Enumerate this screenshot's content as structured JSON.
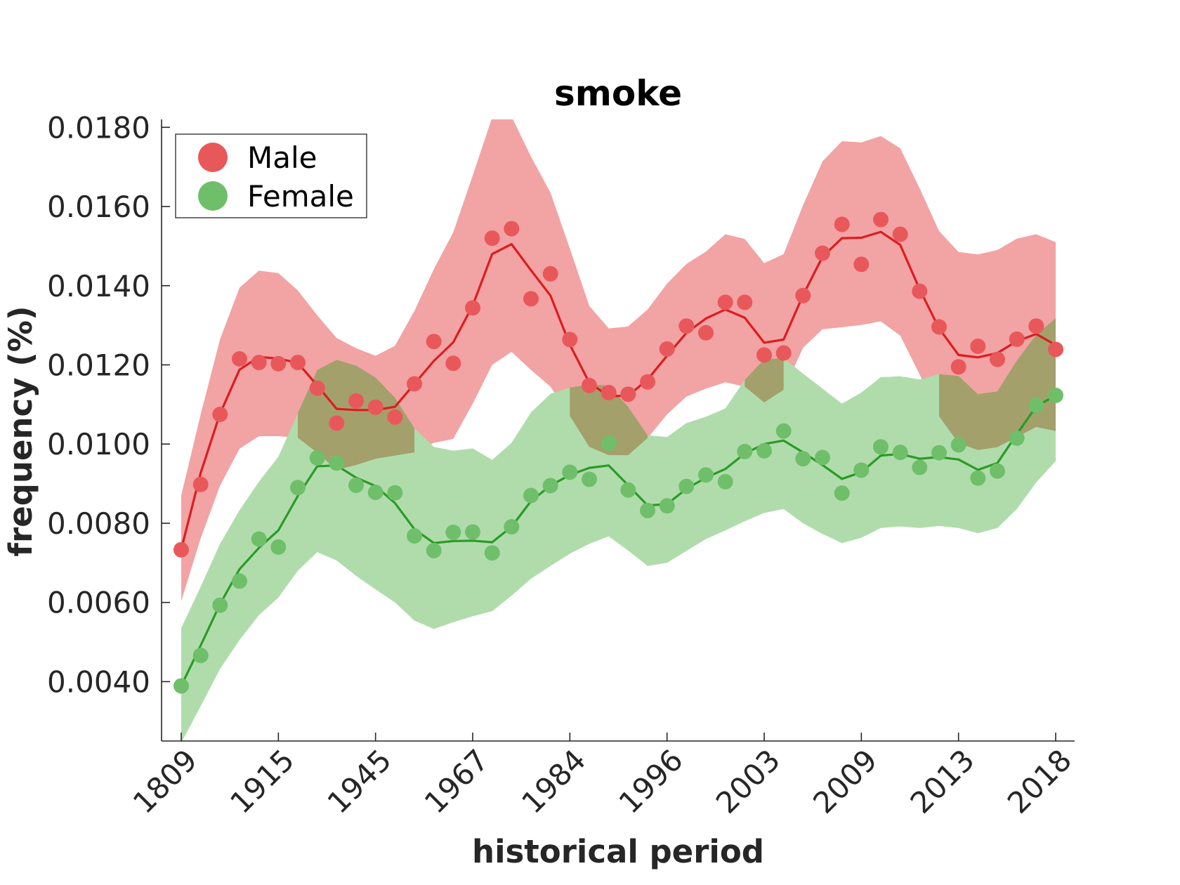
{
  "chart_data": {
    "type": "line",
    "title": "smoke",
    "xlabel": "historical period",
    "ylabel": "frequency (%)",
    "ylim": [
      0.0025,
      0.0182
    ],
    "yticks": [
      "0.0040",
      "0.0060",
      "0.0080",
      "0.0100",
      "0.0120",
      "0.0140",
      "0.0160",
      "0.0180"
    ],
    "ytick_values": [
      0.004,
      0.006,
      0.008,
      0.01,
      0.012,
      0.014,
      0.016,
      0.018
    ],
    "xtick_labels": [
      "1809",
      "1915",
      "1945",
      "1967",
      "1984",
      "1996",
      "2003",
      "2009",
      "2013",
      "2018"
    ],
    "xtick_indices": [
      0,
      5,
      10,
      15,
      20,
      25,
      30,
      35,
      40,
      45
    ],
    "n_points": 46,
    "grid": false,
    "legend_position": "top-left",
    "colors": {
      "Male": {
        "point": "#e8585b",
        "line": "#dd1c1f",
        "band": "#f2a2a3"
      },
      "Female": {
        "point": "#6fbf6a",
        "line": "#2a9b26",
        "band": "#afdcab"
      },
      "overlap": "#a3a06c"
    },
    "series": [
      {
        "name": "Male",
        "points": [
          0.00733,
          0.00898,
          0.01075,
          0.01215,
          0.01206,
          0.01203,
          0.01206,
          0.01141,
          0.01053,
          0.01109,
          0.01093,
          0.01068,
          0.01152,
          0.01259,
          0.01204,
          0.01344,
          0.0152,
          0.01544,
          0.01367,
          0.0143,
          0.01264,
          0.01148,
          0.0113,
          0.01126,
          0.01157,
          0.0124,
          0.01298,
          0.01281,
          0.01358,
          0.01358,
          0.01225,
          0.0123,
          0.01375,
          0.01482,
          0.01555,
          0.01454,
          0.01567,
          0.0153,
          0.01386,
          0.01296,
          0.01195,
          0.01247,
          0.01214,
          0.01265,
          0.01298,
          0.01239
        ],
        "line": [
          0.00734,
          0.00927,
          0.01077,
          0.01188,
          0.0122,
          0.01216,
          0.01205,
          0.01148,
          0.01089,
          0.01086,
          0.01086,
          0.01094,
          0.01152,
          0.0121,
          0.01257,
          0.0135,
          0.0148,
          0.01505,
          0.01439,
          0.01375,
          0.01251,
          0.01155,
          0.01121,
          0.01122,
          0.01163,
          0.01223,
          0.01281,
          0.01317,
          0.0134,
          0.01319,
          0.01256,
          0.01264,
          0.01376,
          0.01473,
          0.0152,
          0.01521,
          0.01536,
          0.01503,
          0.01391,
          0.01292,
          0.01225,
          0.01219,
          0.0123,
          0.0126,
          0.01278,
          0.0125
        ],
        "band_upper": [
          0.0087,
          0.01075,
          0.01265,
          0.01395,
          0.01438,
          0.01432,
          0.01388,
          0.01325,
          0.01268,
          0.01242,
          0.01223,
          0.01248,
          0.01336,
          0.01442,
          0.01535,
          0.01678,
          0.01825,
          0.01827,
          0.01726,
          0.01635,
          0.01494,
          0.01349,
          0.01292,
          0.01297,
          0.0134,
          0.01405,
          0.01455,
          0.01486,
          0.0153,
          0.01518,
          0.01457,
          0.0148,
          0.01603,
          0.01714,
          0.01765,
          0.01762,
          0.01778,
          0.01747,
          0.01646,
          0.01538,
          0.01485,
          0.01479,
          0.0149,
          0.01519,
          0.0153,
          0.0151
        ],
        "band_lower": [
          0.00603,
          0.00762,
          0.00895,
          0.00988,
          0.0102,
          0.0102,
          0.01016,
          0.00978,
          0.00935,
          0.00947,
          0.00963,
          0.00971,
          0.00979,
          0.01003,
          0.01013,
          0.01102,
          0.012,
          0.01233,
          0.01187,
          0.01145,
          0.01071,
          0.00993,
          0.00972,
          0.00972,
          0.01015,
          0.01075,
          0.0112,
          0.0114,
          0.01156,
          0.01145,
          0.01105,
          0.01137,
          0.01243,
          0.0129,
          0.01295,
          0.01301,
          0.0131,
          0.01274,
          0.01176,
          0.0107,
          0.01002,
          0.00985,
          0.00992,
          0.01018,
          0.01043,
          0.01033
        ]
      },
      {
        "name": "Female",
        "points": [
          0.00389,
          0.00466,
          0.00593,
          0.00654,
          0.0076,
          0.0074,
          0.0089,
          0.00965,
          0.00952,
          0.00896,
          0.00878,
          0.00877,
          0.00768,
          0.00731,
          0.00777,
          0.00778,
          0.00725,
          0.00791,
          0.0087,
          0.00895,
          0.00929,
          0.00911,
          0.01002,
          0.00884,
          0.00832,
          0.00844,
          0.00893,
          0.00922,
          0.00905,
          0.00981,
          0.00983,
          0.01033,
          0.00963,
          0.00966,
          0.00876,
          0.00934,
          0.00993,
          0.00979,
          0.00941,
          0.00978,
          0.00998,
          0.00914,
          0.00932,
          0.01015,
          0.01098,
          0.01123
        ],
        "line": [
          0.00389,
          0.00491,
          0.00596,
          0.00684,
          0.00738,
          0.00782,
          0.00869,
          0.00944,
          0.00946,
          0.00915,
          0.00894,
          0.00851,
          0.00785,
          0.0075,
          0.00755,
          0.00756,
          0.00752,
          0.00791,
          0.00856,
          0.00895,
          0.00922,
          0.0094,
          0.00946,
          0.00896,
          0.00845,
          0.00848,
          0.00887,
          0.00915,
          0.00937,
          0.00976,
          0.01,
          0.01009,
          0.00979,
          0.00947,
          0.00912,
          0.00929,
          0.00971,
          0.00975,
          0.00963,
          0.00967,
          0.00961,
          0.00935,
          0.00952,
          0.01025,
          0.01095,
          0.01123
        ],
        "band_upper": [
          0.00535,
          0.0064,
          0.00748,
          0.00833,
          0.00905,
          0.00968,
          0.01078,
          0.01187,
          0.01213,
          0.01198,
          0.01168,
          0.01117,
          0.0104,
          0.00993,
          0.00983,
          0.00989,
          0.0096,
          0.01003,
          0.0108,
          0.01127,
          0.01143,
          0.0115,
          0.01148,
          0.01094,
          0.01022,
          0.01018,
          0.01053,
          0.01069,
          0.0109,
          0.01162,
          0.01214,
          0.01217,
          0.01178,
          0.0114,
          0.01102,
          0.0113,
          0.01169,
          0.01171,
          0.01163,
          0.01177,
          0.01172,
          0.01126,
          0.01133,
          0.01211,
          0.01276,
          0.01318
        ],
        "band_lower": [
          0.00245,
          0.00338,
          0.00432,
          0.00505,
          0.00568,
          0.00612,
          0.0068,
          0.00727,
          0.00706,
          0.00667,
          0.00633,
          0.006,
          0.00554,
          0.00533,
          0.0055,
          0.00565,
          0.00578,
          0.00617,
          0.0066,
          0.00692,
          0.00723,
          0.00748,
          0.00767,
          0.00731,
          0.00692,
          0.007,
          0.0073,
          0.0076,
          0.00782,
          0.00805,
          0.00826,
          0.00836,
          0.008,
          0.00773,
          0.0075,
          0.00763,
          0.00788,
          0.00792,
          0.00788,
          0.00793,
          0.00788,
          0.00775,
          0.00788,
          0.00836,
          0.00903,
          0.00957
        ]
      }
    ]
  }
}
